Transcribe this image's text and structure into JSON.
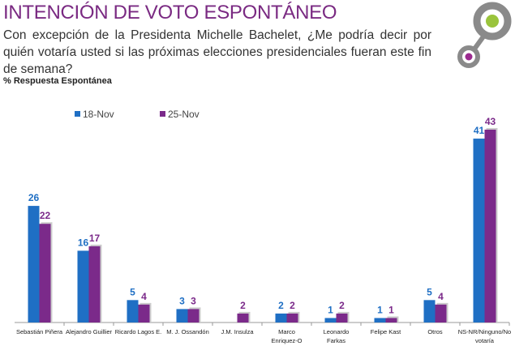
{
  "header": {
    "title": "INTENCIÓN DE VOTO ESPONTÁNEO",
    "question": "Con excepción de la Presidenta Michelle Bachelet, ¿Me podría decir por quién votaría usted si las próximas elecciones presidenciales fueran este fin de semana?",
    "subtitle": "% Respuesta Espontánea"
  },
  "colors": {
    "title": "#7a2a82",
    "series1": "#1f6fc4",
    "series2": "#7b2a8a",
    "logo_ring": "#8a8a8a",
    "logo_green": "#9ac43c",
    "logo_purple": "#9b2a8f"
  },
  "chart_data": {
    "type": "bar",
    "title": "INTENCIÓN DE VOTO ESPONTÁNEO",
    "ylabel": "% Respuesta Espontánea",
    "ylim": [
      0,
      43
    ],
    "grid": false,
    "legend": "top-left",
    "categories": [
      [
        "Sebastián Piñera"
      ],
      [
        "Alejandro  Guillier"
      ],
      [
        "Ricardo Lagos E."
      ],
      [
        "M. J. Ossandón"
      ],
      [
        "J.M. Insulza"
      ],
      [
        "Marco",
        "Enriquez-O"
      ],
      [
        "Leonardo",
        "Farkas"
      ],
      [
        "Felipe Kast"
      ],
      [
        "Otros"
      ],
      [
        "NS-NR/Ninguno/No",
        "votaría"
      ]
    ],
    "series": [
      {
        "name": "18-Nov",
        "values": [
          26,
          16,
          5,
          3,
          null,
          2,
          1,
          1,
          5,
          41
        ]
      },
      {
        "name": "25-Nov",
        "values": [
          22,
          17,
          4,
          3,
          2,
          2,
          2,
          1,
          4,
          43
        ]
      }
    ]
  }
}
